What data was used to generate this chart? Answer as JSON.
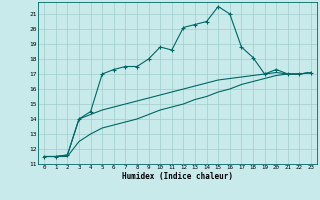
{
  "title": "",
  "xlabel": "Humidex (Indice chaleur)",
  "bg_color": "#c8eaea",
  "line_color": "#006666",
  "grid_color": "#a0cccc",
  "xlim": [
    -0.5,
    23.5
  ],
  "ylim": [
    11,
    21.8
  ],
  "yticks": [
    11,
    12,
    13,
    14,
    15,
    16,
    17,
    18,
    19,
    20,
    21
  ],
  "xticks": [
    0,
    1,
    2,
    3,
    4,
    5,
    6,
    7,
    8,
    9,
    10,
    11,
    12,
    13,
    14,
    15,
    16,
    17,
    18,
    19,
    20,
    21,
    22,
    23
  ],
  "line1_x": [
    0,
    1,
    2,
    3,
    4,
    5,
    6,
    7,
    8,
    9,
    10,
    11,
    12,
    13,
    14,
    15,
    16,
    17,
    18,
    19,
    20,
    21,
    22,
    23
  ],
  "line1_y": [
    11.5,
    11.5,
    11.6,
    14.0,
    14.5,
    17.0,
    17.3,
    17.5,
    17.5,
    18.0,
    18.8,
    18.6,
    20.1,
    20.3,
    20.5,
    21.5,
    21.0,
    18.8,
    18.1,
    17.0,
    17.3,
    17.0,
    17.0,
    17.1
  ],
  "line2_x": [
    0,
    1,
    2,
    3,
    4,
    5,
    6,
    7,
    8,
    9,
    10,
    11,
    12,
    13,
    14,
    15,
    16,
    17,
    18,
    19,
    20,
    21,
    22,
    23
  ],
  "line2_y": [
    11.5,
    11.5,
    11.6,
    14.0,
    14.3,
    14.6,
    14.8,
    15.0,
    15.2,
    15.4,
    15.6,
    15.8,
    16.0,
    16.2,
    16.4,
    16.6,
    16.7,
    16.8,
    16.9,
    17.0,
    17.1,
    17.0,
    17.0,
    17.1
  ],
  "line3_x": [
    0,
    1,
    2,
    3,
    4,
    5,
    6,
    7,
    8,
    9,
    10,
    11,
    12,
    13,
    14,
    15,
    16,
    17,
    18,
    19,
    20,
    21,
    22,
    23
  ],
  "line3_y": [
    11.5,
    11.5,
    11.5,
    12.5,
    13.0,
    13.4,
    13.6,
    13.8,
    14.0,
    14.3,
    14.6,
    14.8,
    15.0,
    15.3,
    15.5,
    15.8,
    16.0,
    16.3,
    16.5,
    16.7,
    16.9,
    17.0,
    17.0,
    17.1
  ]
}
